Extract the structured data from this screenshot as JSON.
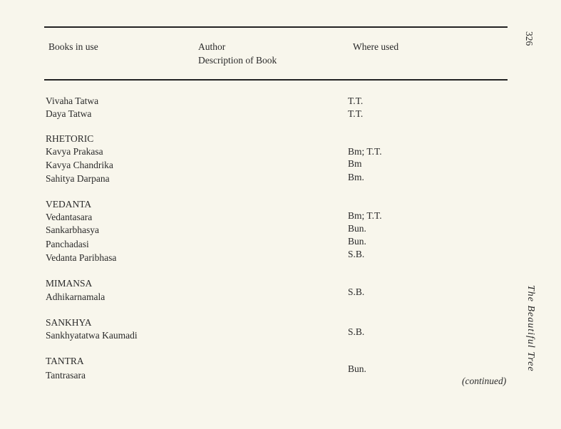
{
  "page_number": "326",
  "running_title": "The Beautiful Tree",
  "header": {
    "col1": "Books in use",
    "col2_line1": "Author",
    "col2_line2": "Description of Book",
    "col3": "Where used"
  },
  "rows": [
    {
      "book": "Vivaha Tatwa",
      "where": "T.T."
    },
    {
      "book": "Daya Tatwa",
      "where": "T.T."
    },
    {
      "section": "RHETORIC"
    },
    {
      "book": "Kavya Prakasa",
      "where": "Bm; T.T."
    },
    {
      "book": "Kavya Chandrika",
      "where": "Bm"
    },
    {
      "book": "Sahitya Darpana",
      "where": "Bm."
    },
    {
      "section": "VEDANTA"
    },
    {
      "book": "Vedantasara",
      "where": "Bm; T.T."
    },
    {
      "book": "Sankarbhasya",
      "where": "Bun."
    },
    {
      "book": "Panchadasi",
      "where": "Bun."
    },
    {
      "book": "Vedanta Paribhasa",
      "where": "S.B."
    },
    {
      "section": "MIMANSA"
    },
    {
      "book": "Adhikarnamala",
      "where": "S.B."
    },
    {
      "section": "SANKHYA"
    },
    {
      "book": "Sankhyatatwa Kaumadi",
      "where": "S.B."
    },
    {
      "section": "TANTRA"
    },
    {
      "book": "Tantrasara",
      "where": "Bun."
    }
  ],
  "continued": "(continued)"
}
